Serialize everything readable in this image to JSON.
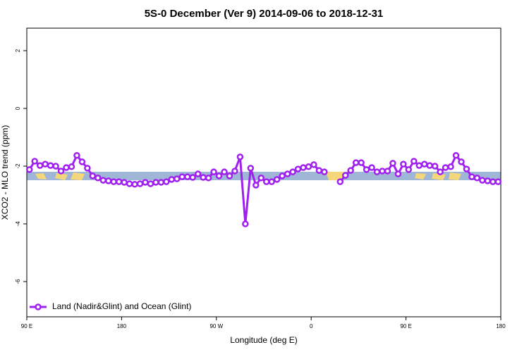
{
  "chart_data": {
    "type": "line",
    "title": "5S-0 December (Ver 9)   2014-09-06 to 2018-12-31",
    "x_label": "Longitude (deg E)",
    "y_label": "XCO2 - MLO trend (ppm)",
    "xlim": [
      90,
      540
    ],
    "ylim": [
      -7.22,
      2.78
    ],
    "xticks": [
      {
        "value": 90,
        "label": "90 E"
      },
      180,
      {
        "value": 270,
        "label": "90 W"
      },
      {
        "value": 360,
        "label": "0"
      },
      {
        "value": 450,
        "label": "90 E"
      },
      {
        "value": 540,
        "label": "180"
      }
    ],
    "yticks": [
      2,
      0,
      -2,
      -4,
      -6
    ],
    "legend_position": "bottom-left",
    "x": [
      92.5,
      97.5,
      102.5,
      107.5,
      112.5,
      117.5,
      122.5,
      127.5,
      132.5,
      137.5,
      142.5,
      147.5,
      152.5,
      157.5,
      162.5,
      167.5,
      172.5,
      177.5,
      182.5,
      187.5,
      192.5,
      197.5,
      202.5,
      207.5,
      212.5,
      217.5,
      222.5,
      227.5,
      232.5,
      237.5,
      242.5,
      247.5,
      252.5,
      257.5,
      262.5,
      267.5,
      272.5,
      277.5,
      282.5,
      287.5,
      292.5,
      297.5,
      302.5,
      307.5,
      312.5,
      317.5,
      322.5,
      327.5,
      332.5,
      337.5,
      342.5,
      347.5,
      352.5,
      357.5,
      362.5,
      367.5,
      372.5,
      377.5,
      382.5,
      387.5,
      392.5,
      397.5,
      402.5,
      407.5,
      412.5,
      417.5,
      422.5,
      427.5,
      432.5,
      437.5,
      442.5,
      447.5,
      452.5,
      457.5,
      462.5,
      467.5,
      472.5,
      477.5,
      482.5,
      487.5,
      492.5,
      497.5,
      502.5,
      507.5,
      512.5,
      517.5,
      522.5,
      527.5,
      532.5,
      537.5
    ],
    "series": [
      {
        "name": "Land (Nadir&Glint) and Ocean (Glint)",
        "color": "#a020f0",
        "values": [
          -2.12,
          -1.83,
          -1.98,
          -1.93,
          -1.98,
          -2.0,
          -2.17,
          -2.05,
          -2.02,
          -1.63,
          -1.85,
          -2.07,
          -2.34,
          -2.41,
          -2.49,
          -2.51,
          -2.54,
          -2.54,
          -2.56,
          -2.61,
          -2.63,
          -2.61,
          -2.56,
          -2.61,
          -2.56,
          -2.56,
          -2.54,
          -2.46,
          -2.44,
          -2.37,
          -2.37,
          -2.39,
          -2.27,
          -2.39,
          -2.41,
          -2.2,
          -2.34,
          -2.2,
          -2.34,
          -2.17,
          -1.68,
          -4.0,
          -2.07,
          -2.66,
          -2.41,
          -2.54,
          -2.54,
          -2.46,
          -2.34,
          -2.27,
          -2.2,
          -2.1,
          -2.05,
          -2.02,
          -1.95,
          -2.15,
          -2.2,
          null,
          null,
          -2.54,
          -2.32,
          -2.15,
          -1.88,
          -1.88,
          -2.12,
          -2.05,
          -2.2,
          -2.17,
          -2.17,
          -1.9,
          -2.27,
          -1.93,
          -2.12,
          -1.83,
          -1.98,
          -1.93,
          -1.98,
          -2.0,
          -2.2,
          -2.05,
          -2.02,
          -1.63,
          -1.85,
          -2.1,
          -2.37,
          -2.41,
          -2.49,
          -2.51,
          -2.54,
          -2.54
        ]
      }
    ]
  }
}
